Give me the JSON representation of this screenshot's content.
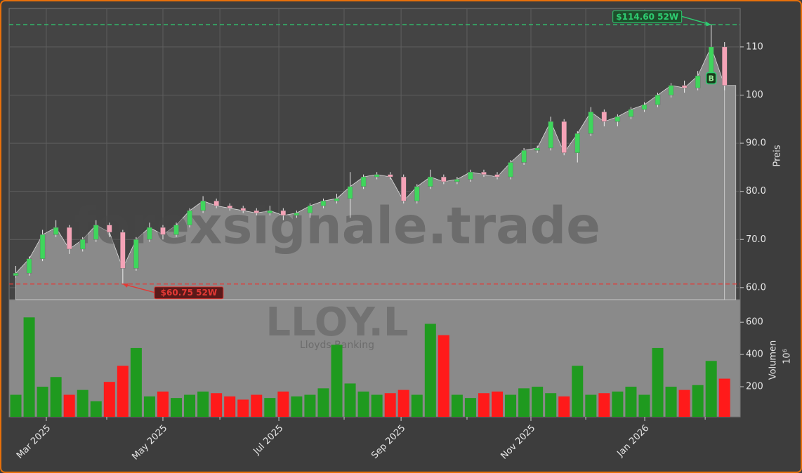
{
  "chart_data": {
    "type": "candlestick",
    "watermark": "forexsignale.trade",
    "ticker": "LLOY.L",
    "company": "Lloyds Banking",
    "y_label": "Preis",
    "y2_label": "Volumen",
    "y2_unit": "10⁶",
    "open": [
      62.5,
      63,
      66,
      71,
      72.5,
      68,
      70,
      73,
      71.5,
      64,
      70,
      72.5,
      71,
      73,
      76,
      78,
      77,
      76.5,
      76,
      75.5,
      76,
      75,
      75.5,
      77,
      78,
      78.5,
      81,
      83,
      83.5,
      83,
      78,
      81,
      83,
      82,
      82.5,
      84,
      83.5,
      83,
      86,
      88.5,
      89,
      94.5,
      88,
      92,
      96.5,
      94.5,
      95.5,
      97,
      98,
      100,
      102,
      101.5,
      104,
      110
    ],
    "high": [
      64.5,
      66.5,
      72,
      74,
      73,
      70.5,
      74,
      73.5,
      72,
      70.5,
      73.5,
      73,
      73.5,
      76.5,
      79,
      78.5,
      77.5,
      77,
      76.5,
      77,
      76.5,
      76,
      77.5,
      78.5,
      79.5,
      84,
      83.5,
      84,
      84,
      83.5,
      81.5,
      84.5,
      83.5,
      83,
      84.5,
      84.5,
      84,
      86.5,
      89,
      89.5,
      95.5,
      95,
      92.5,
      97.5,
      97,
      96,
      97.5,
      98.5,
      100.5,
      102.5,
      103,
      105,
      114.6,
      111
    ],
    "low": [
      62,
      62.5,
      65.5,
      70.5,
      67,
      67.5,
      69.5,
      70.5,
      60.75,
      63.5,
      69.5,
      70,
      70.5,
      72.5,
      75.5,
      76.5,
      76,
      75.5,
      75,
      75,
      74,
      74.5,
      74.5,
      76.5,
      77.5,
      74.5,
      80.5,
      82.5,
      82.5,
      77.5,
      77.5,
      80.5,
      81.5,
      81.5,
      82,
      83,
      82.5,
      82.5,
      85.5,
      88,
      88.5,
      87.5,
      86,
      91.5,
      93.5,
      93.5,
      95,
      96.5,
      97.5,
      99.5,
      100.5,
      101,
      103.5,
      101
    ],
    "close": [
      63,
      66,
      71,
      72.5,
      68,
      70,
      73,
      71.5,
      64,
      70,
      72.5,
      71,
      73,
      76,
      78,
      77,
      76.5,
      76,
      75.5,
      76,
      75,
      75.5,
      77,
      78,
      78.5,
      81,
      83,
      83.5,
      83,
      78,
      81,
      83,
      82,
      82.5,
      84,
      83.5,
      83,
      86,
      88.5,
      89,
      94.5,
      88,
      92,
      96.5,
      94.5,
      95.5,
      97,
      98,
      100,
      102,
      101.5,
      104,
      110,
      102
    ],
    "volume": [
      150,
      630,
      200,
      260,
      150,
      180,
      110,
      230,
      330,
      440,
      140,
      170,
      130,
      150,
      170,
      160,
      140,
      120,
      150,
      130,
      170,
      140,
      150,
      190,
      460,
      220,
      170,
      150,
      160,
      180,
      150,
      590,
      520,
      150,
      130,
      160,
      170,
      150,
      190,
      200,
      160,
      140,
      330,
      150,
      160,
      170,
      200,
      150,
      440,
      200,
      180,
      210,
      360,
      250
    ],
    "up_color": "#3fd65c",
    "down_color": "#f5a3b7",
    "vol_up_color": "#1f9a1f",
    "vol_down_color": "#ff1a1a",
    "area_color": "#8a8a8a",
    "xlim": [
      -0.5,
      54.17
    ],
    "xticks": [
      {
        "value": 2.28,
        "label": "Mar 2025"
      },
      {
        "value": 11.0,
        "label": "May 2025"
      },
      {
        "value": 19.67,
        "label": "Jul 2025"
      },
      {
        "value": 28.81,
        "label": "Sep 2025"
      },
      {
        "value": 38.52,
        "label": "Nov 2025"
      },
      {
        "value": 47.03,
        "label": "Jan 2026"
      }
    ],
    "xticks_minor": [
      6.8,
      15.26,
      24.55,
      33.74,
      42.62,
      51.55
    ],
    "ylim": [
      57.5,
      118
    ],
    "yticks": [
      {
        "value": 60,
        "label": "60.0"
      },
      {
        "value": 70,
        "label": "70.0"
      },
      {
        "value": 80,
        "label": "80.0"
      },
      {
        "value": 90,
        "label": "90.0"
      },
      {
        "value": 100,
        "label": "100"
      },
      {
        "value": 110,
        "label": "110"
      }
    ],
    "y2lim": [
      13,
      740
    ],
    "y2ticks": [
      200,
      400,
      600
    ],
    "grid": true,
    "annotations": [
      {
        "text": "$114.60 52W",
        "value": 114.6,
        "index": 52,
        "color": "#2ecc71"
      },
      {
        "text": "$60.75 52W",
        "value": 60.75,
        "index": 8,
        "color": "#e53935"
      }
    ],
    "signal": {
      "text": "B",
      "index": 52,
      "value": 103.5
    }
  }
}
